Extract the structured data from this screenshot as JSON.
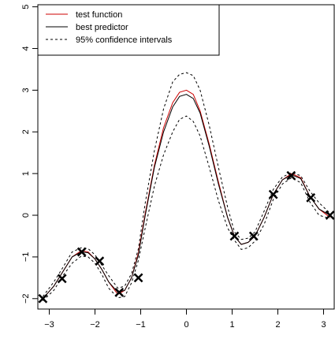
{
  "chart_data": {
    "type": "line",
    "title": "",
    "xlabel": "",
    "ylabel": "",
    "xlim": [
      -3.25,
      3.25
    ],
    "ylim": [
      -2.25,
      5.05
    ],
    "x_ticks": [
      -3,
      -2,
      -1,
      0,
      1,
      2,
      3
    ],
    "x_tick_labels": [
      "−3",
      "−2",
      "−1",
      "0",
      "1",
      "2",
      "3"
    ],
    "y_ticks": [
      -2,
      -1,
      0,
      1,
      2,
      3,
      4,
      5
    ],
    "y_tick_labels": [
      "−2",
      "−1",
      "0",
      "1",
      "2",
      "3",
      "4",
      "5"
    ],
    "grid": false,
    "legend_position": "top-left",
    "colors": {
      "test_function": "#cc0000",
      "best_predictor": "#000000",
      "confidence": "#000000",
      "observations": "#000000"
    },
    "legend": [
      {
        "label": "test function",
        "style": "solid",
        "color": "#cc0000"
      },
      {
        "label": "best predictor",
        "style": "solid",
        "color": "#000000"
      },
      {
        "label": "95% confidence intervals",
        "style": "dashed",
        "color": "#000000"
      }
    ],
    "series": [
      {
        "name": "test function",
        "x": [
          -3.14,
          -2.9,
          -2.7,
          -2.5,
          -2.3,
          -2.15,
          -2.0,
          -1.85,
          -1.7,
          -1.5,
          -1.35,
          -1.2,
          -1.05,
          -0.9,
          -0.7,
          -0.5,
          -0.3,
          -0.15,
          0.0,
          0.15,
          0.3,
          0.5,
          0.7,
          0.9,
          1.05,
          1.2,
          1.35,
          1.5,
          1.7,
          1.9,
          2.1,
          2.3,
          2.5,
          2.7,
          2.9,
          3.14
        ],
        "y": [
          -2.0,
          -1.7,
          -1.35,
          -1.0,
          -0.85,
          -0.88,
          -1.05,
          -1.3,
          -1.6,
          -1.9,
          -1.8,
          -1.5,
          -0.9,
          0.05,
          1.2,
          2.1,
          2.7,
          2.95,
          3.0,
          2.9,
          2.5,
          1.7,
          0.8,
          -0.05,
          -0.5,
          -0.7,
          -0.65,
          -0.5,
          -0.05,
          0.5,
          0.85,
          1.0,
          0.9,
          0.45,
          0.15,
          -0.05
        ]
      },
      {
        "name": "best predictor",
        "x": [
          -3.14,
          -2.9,
          -2.7,
          -2.5,
          -2.3,
          -2.15,
          -2.0,
          -1.85,
          -1.7,
          -1.5,
          -1.35,
          -1.2,
          -1.05,
          -0.9,
          -0.7,
          -0.5,
          -0.3,
          -0.15,
          0.0,
          0.15,
          0.3,
          0.5,
          0.7,
          0.9,
          1.05,
          1.2,
          1.35,
          1.5,
          1.7,
          1.9,
          2.1,
          2.3,
          2.5,
          2.7,
          2.9,
          3.14
        ],
        "y": [
          -2.0,
          -1.7,
          -1.35,
          -1.0,
          -0.88,
          -0.9,
          -1.05,
          -1.3,
          -1.6,
          -1.85,
          -1.8,
          -1.5,
          -0.95,
          0.0,
          1.15,
          2.0,
          2.6,
          2.85,
          2.9,
          2.8,
          2.45,
          1.65,
          0.75,
          -0.05,
          -0.5,
          -0.7,
          -0.65,
          -0.5,
          -0.05,
          0.5,
          0.85,
          0.97,
          0.88,
          0.45,
          0.15,
          0.0
        ]
      },
      {
        "name": "95% confidence intervals (upper)",
        "x": [
          -3.14,
          -2.9,
          -2.7,
          -2.5,
          -2.3,
          -2.15,
          -2.0,
          -1.85,
          -1.7,
          -1.5,
          -1.35,
          -1.2,
          -1.05,
          -0.9,
          -0.7,
          -0.5,
          -0.3,
          -0.15,
          0.0,
          0.15,
          0.3,
          0.5,
          0.7,
          0.9,
          1.05,
          1.2,
          1.35,
          1.5,
          1.7,
          1.9,
          2.1,
          2.3,
          2.5,
          2.7,
          2.9,
          3.14
        ],
        "y": [
          -1.95,
          -1.6,
          -1.25,
          -0.88,
          -0.78,
          -0.8,
          -0.95,
          -1.2,
          -1.45,
          -1.75,
          -1.7,
          -1.4,
          -0.8,
          0.3,
          1.55,
          2.55,
          3.2,
          3.38,
          3.42,
          3.35,
          3.0,
          2.15,
          1.15,
          0.2,
          -0.4,
          -0.58,
          -0.55,
          -0.4,
          0.1,
          0.62,
          0.92,
          1.02,
          0.95,
          0.58,
          0.3,
          0.05
        ]
      },
      {
        "name": "95% confidence intervals (lower)",
        "x": [
          -3.14,
          -2.9,
          -2.7,
          -2.5,
          -2.3,
          -2.15,
          -2.0,
          -1.85,
          -1.7,
          -1.5,
          -1.35,
          -1.2,
          -1.05,
          -0.9,
          -0.7,
          -0.5,
          -0.3,
          -0.15,
          0.0,
          0.15,
          0.3,
          0.5,
          0.7,
          0.9,
          1.05,
          1.2,
          1.35,
          1.5,
          1.7,
          1.9,
          2.1,
          2.3,
          2.5,
          2.7,
          2.9,
          3.14
        ],
        "y": [
          -2.05,
          -1.8,
          -1.45,
          -1.15,
          -0.98,
          -1.0,
          -1.15,
          -1.42,
          -1.75,
          -1.98,
          -1.95,
          -1.62,
          -1.08,
          -0.3,
          0.7,
          1.45,
          2.0,
          2.3,
          2.38,
          2.25,
          1.9,
          1.15,
          0.35,
          -0.3,
          -0.6,
          -0.82,
          -0.78,
          -0.62,
          -0.22,
          0.38,
          0.75,
          0.9,
          0.78,
          0.32,
          0.0,
          -0.08
        ]
      }
    ],
    "points": {
      "name": "observations",
      "x": [
        -3.14,
        -2.72,
        -2.29,
        -1.9,
        -1.47,
        -1.05,
        1.05,
        1.47,
        1.9,
        2.29,
        2.72,
        3.14
      ],
      "y": [
        -2.0,
        -1.52,
        -0.88,
        -1.1,
        -1.85,
        -1.5,
        -0.5,
        -0.5,
        0.5,
        0.95,
        0.42,
        0.0
      ]
    }
  }
}
